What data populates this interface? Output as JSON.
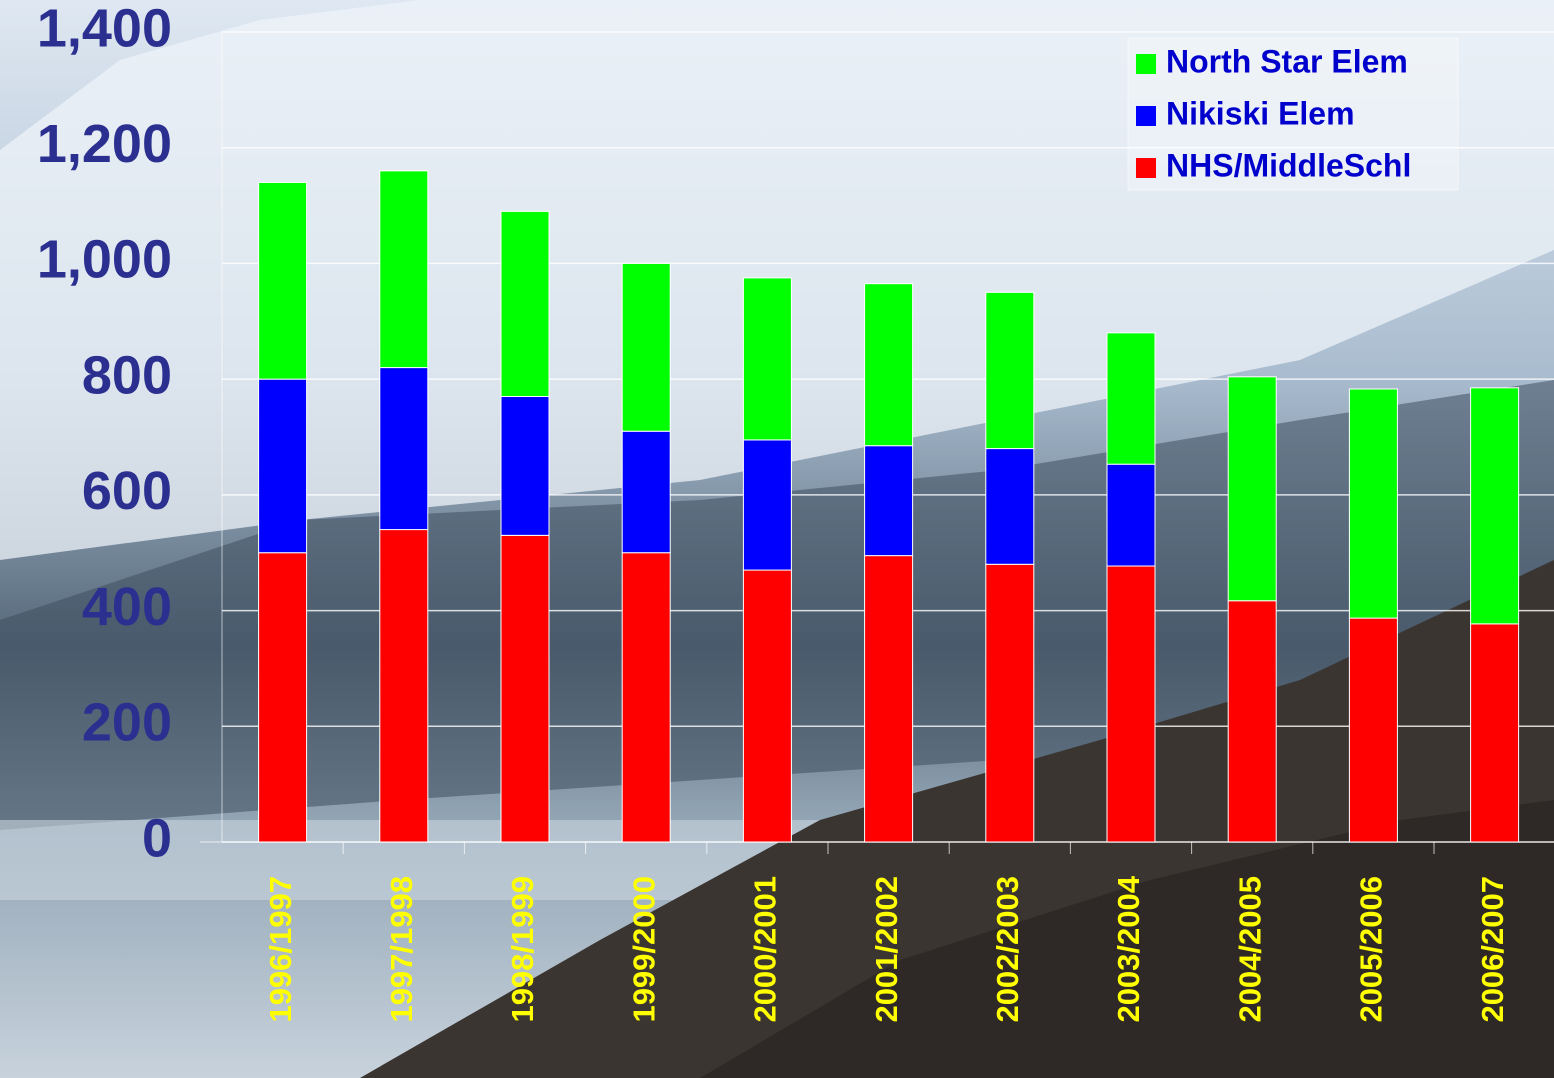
{
  "chart_data": {
    "type": "stacked-bar",
    "categories": [
      "1996/1997",
      "1997/1998",
      "1998/1999",
      "1999/2000",
      "2000/2001",
      "2001/2002",
      "2002/2003",
      "2003/2004",
      "2004/2005",
      "2005/2006",
      "2006/2007"
    ],
    "series": [
      {
        "name": "NHS/MiddleSchl",
        "color": "#ff0000",
        "values": [
          500,
          540,
          530,
          500,
          470,
          495,
          480,
          477,
          417,
          387,
          377
        ]
      },
      {
        "name": "Nikiski Elem",
        "color": "#0000ff",
        "values": [
          300,
          280,
          240,
          210,
          225,
          190,
          200,
          176,
          0,
          0,
          0
        ]
      },
      {
        "name": "North Star Elem",
        "color": "#00ff00",
        "values": [
          340,
          340,
          320,
          290,
          280,
          280,
          270,
          227,
          387,
          396,
          408
        ]
      }
    ],
    "ylim": [
      0,
      1400
    ],
    "yticks": [
      0,
      200,
      400,
      600,
      800,
      {
        "value": 1000,
        "label": "1,000"
      },
      {
        "value": 1200,
        "label": "1,200"
      },
      {
        "value": 1400,
        "label": "1,400"
      }
    ],
    "grid": true,
    "legend": "top-right"
  }
}
